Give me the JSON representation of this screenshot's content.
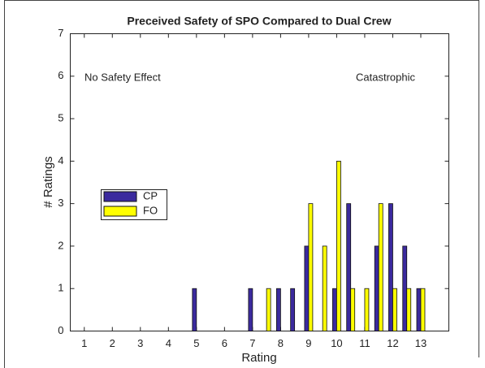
{
  "chart_data": {
    "type": "bar",
    "title": "Preceived Safety of SPO Compared to Dual Crew",
    "xlabel": "Rating",
    "ylabel": "# Ratings",
    "annotations": [
      "No Safety Effect",
      "Catastrophic"
    ],
    "x": [
      1,
      1.5,
      2,
      2.5,
      3,
      3.5,
      4,
      4.5,
      5,
      5.5,
      6,
      6.5,
      7,
      7.5,
      8,
      8.5,
      9,
      9.5,
      10,
      10.5,
      11,
      11.5,
      12,
      12.5,
      13
    ],
    "series": [
      {
        "name": "CP",
        "color": "#3b2a9e",
        "values": [
          0,
          0,
          0,
          0,
          0,
          0,
          0,
          0,
          1,
          0,
          0,
          0,
          1,
          0,
          1,
          1,
          2,
          0,
          1,
          3,
          0,
          2,
          3,
          2,
          1
        ]
      },
      {
        "name": "FO",
        "color": "#ffff00",
        "values": [
          0,
          0,
          0,
          0,
          0,
          0,
          0,
          0,
          0,
          0,
          0,
          0,
          0,
          1,
          0,
          0,
          3,
          2,
          4,
          1,
          1,
          3,
          1,
          1,
          1
        ]
      }
    ],
    "xlim": [
      0.5,
      14
    ],
    "xticks": [
      1,
      2,
      3,
      4,
      5,
      6,
      7,
      8,
      9,
      10,
      11,
      12,
      13
    ],
    "ylim": [
      0,
      7
    ],
    "yticks": [
      0,
      1,
      2,
      3,
      4,
      5,
      6,
      7
    ]
  }
}
